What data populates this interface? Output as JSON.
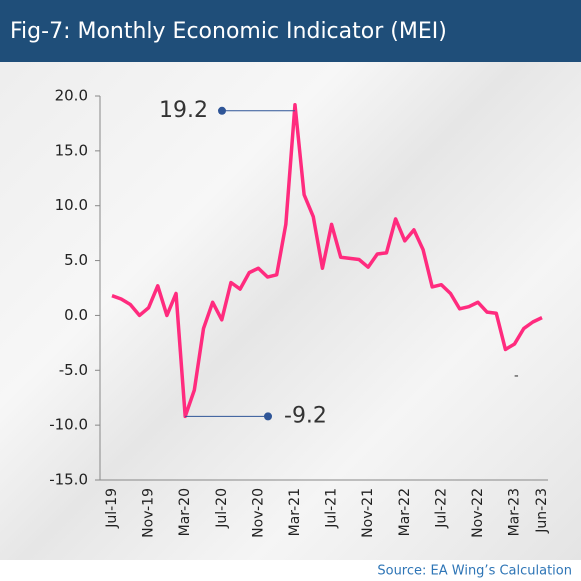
{
  "chart_data": {
    "type": "line",
    "title": "Fig-7: Monthly Economic Indicator (MEI)",
    "source": "Source: EA Wing’s Calculation",
    "annotations": [
      "19.2",
      "-9.2",
      "-"
    ],
    "categories": [
      "Jul-19",
      null,
      null,
      null,
      "Nov-19",
      null,
      null,
      null,
      "Mar-20",
      null,
      null,
      null,
      "Jul-20",
      null,
      null,
      null,
      "Nov-20",
      null,
      null,
      null,
      "Mar-21",
      null,
      null,
      null,
      "Jul-21",
      null,
      null,
      null,
      "Nov-21",
      null,
      null,
      null,
      "Mar-22",
      null,
      null,
      null,
      "Jul-22",
      null,
      null,
      null,
      "Nov-22",
      null,
      null,
      null,
      "Mar-23",
      null,
      null,
      "Jun-23"
    ],
    "series": [
      {
        "name": "MEI",
        "color": "#ff2b7e",
        "values": [
          1.8,
          1.5,
          1.0,
          0.0,
          0.7,
          2.7,
          0.0,
          2.0,
          -9.2,
          -6.8,
          -1.2,
          1.2,
          -0.4,
          3.0,
          2.4,
          3.9,
          4.3,
          3.5,
          3.7,
          8.3,
          19.2,
          11.0,
          9.0,
          4.3,
          8.3,
          5.3,
          5.2,
          5.1,
          4.4,
          5.6,
          5.7,
          8.8,
          6.8,
          7.8,
          6.0,
          2.6,
          2.8,
          2.0,
          0.6,
          0.8,
          1.2,
          0.3,
          0.2,
          -3.1,
          -2.6,
          -1.2,
          -0.6,
          -0.2
        ]
      }
    ],
    "ylim": [
      -15,
      20
    ],
    "yticks": [
      {
        "value": 20,
        "label": "20.0"
      },
      {
        "value": 15,
        "label": "15.0"
      },
      {
        "value": 10,
        "label": "10.0"
      },
      {
        "value": 5,
        "label": "5.0"
      },
      {
        "value": 0,
        "label": "0.0"
      },
      {
        "value": -5,
        "label": "-5.0"
      },
      {
        "value": -10,
        "label": "-10.0"
      },
      {
        "value": -15,
        "label": "-15.0"
      }
    ]
  }
}
